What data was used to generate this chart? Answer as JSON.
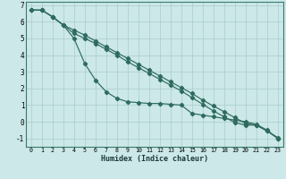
{
  "xlabel": "Humidex (Indice chaleur)",
  "background_color": "#cce8e8",
  "grid_color": "#aacccc",
  "line_color": "#2e6b5e",
  "ylim": [
    -1.5,
    7.2
  ],
  "xlim": [
    -0.5,
    23.5
  ],
  "yticks": [
    -1,
    0,
    1,
    2,
    3,
    4,
    5,
    6,
    7
  ],
  "xticks": [
    0,
    1,
    2,
    3,
    4,
    5,
    6,
    7,
    8,
    9,
    10,
    11,
    12,
    13,
    14,
    15,
    16,
    17,
    18,
    19,
    20,
    21,
    22,
    23
  ],
  "curve1_x": [
    0,
    1,
    2,
    3,
    4,
    5,
    6,
    7,
    8,
    9,
    10,
    11,
    12,
    13,
    14,
    15,
    16,
    17,
    18,
    19,
    20,
    21,
    22,
    23
  ],
  "curve1_y": [
    6.7,
    6.7,
    6.3,
    5.8,
    5.5,
    5.2,
    4.85,
    4.5,
    4.15,
    3.8,
    3.45,
    3.1,
    2.75,
    2.4,
    2.05,
    1.7,
    1.3,
    0.95,
    0.6,
    0.25,
    -0.1,
    -0.2,
    -0.55,
    -0.95
  ],
  "curve2_x": [
    0,
    1,
    2,
    3,
    4,
    5,
    6,
    7,
    8,
    9,
    10,
    11,
    12,
    13,
    14,
    15,
    16,
    17,
    18,
    19,
    20,
    21,
    22,
    23
  ],
  "curve2_y": [
    6.7,
    6.7,
    6.3,
    5.8,
    5.3,
    5.0,
    4.7,
    4.35,
    4.0,
    3.6,
    3.25,
    2.9,
    2.55,
    2.2,
    1.85,
    1.45,
    1.05,
    0.65,
    0.3,
    -0.05,
    -0.2,
    -0.2,
    -0.55,
    -1.0
  ],
  "curve3_x": [
    0,
    1,
    2,
    3,
    4,
    5,
    6,
    7,
    8,
    9,
    10,
    11,
    12,
    13,
    14,
    15,
    16,
    17,
    18,
    19,
    20,
    21,
    22,
    23
  ],
  "curve3_y": [
    6.7,
    6.7,
    6.3,
    5.8,
    5.0,
    3.5,
    2.5,
    1.8,
    1.4,
    1.2,
    1.15,
    1.1,
    1.1,
    1.05,
    1.0,
    0.5,
    0.4,
    0.3,
    0.2,
    0.1,
    0.0,
    -0.15,
    -0.5,
    -1.0
  ],
  "xlabel_fontsize": 6.0,
  "ytick_fontsize": 5.5,
  "xtick_fontsize": 4.8,
  "linewidth": 0.85,
  "markersize": 2.2
}
